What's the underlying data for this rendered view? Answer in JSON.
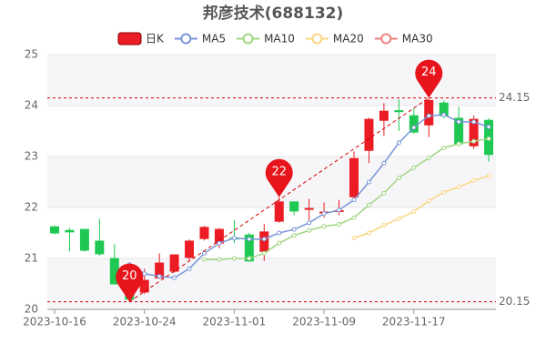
{
  "chart_data": {
    "type": "candlestick",
    "title": "邦彦技术(688132)",
    "categories": [
      "2023-10-16",
      null,
      null,
      null,
      null,
      null,
      "2023-10-24",
      null,
      null,
      null,
      null,
      null,
      "2023-11-01",
      null,
      null,
      null,
      null,
      null,
      "2023-11-09",
      null,
      null,
      null,
      null,
      null,
      "2023-11-17",
      null,
      null,
      null,
      null,
      null
    ],
    "series": [
      {
        "name": "日K",
        "type": "candlestick",
        "up_color": "#eb1c24",
        "down_color": "#1ec853",
        "open": [
          21.62,
          21.55,
          21.57,
          21.34,
          21.0,
          20.5,
          20.34,
          20.62,
          20.75,
          21.02,
          21.39,
          21.3,
          21.4,
          21.46,
          21.14,
          21.73,
          22.11,
          21.97,
          21.9,
          21.92,
          22.21,
          23.12,
          23.71,
          23.9,
          23.8,
          23.62,
          24.05,
          23.75,
          23.21,
          23.71
        ],
        "close": [
          21.5,
          21.52,
          21.16,
          21.09,
          20.5,
          20.2,
          20.57,
          20.91,
          21.07,
          21.34,
          21.61,
          21.57,
          21.38,
          20.95,
          21.52,
          22.11,
          21.93,
          21.98,
          21.91,
          21.94,
          22.96,
          23.73,
          23.89,
          23.88,
          23.48,
          24.1,
          23.8,
          23.25,
          23.73,
          23.04
        ],
        "high": [
          21.65,
          21.6,
          21.57,
          21.78,
          21.28,
          20.6,
          20.8,
          21.1,
          21.08,
          21.37,
          21.64,
          21.6,
          21.75,
          21.5,
          21.68,
          22.2,
          22.1,
          22.17,
          22.1,
          22.15,
          23.1,
          23.76,
          24.05,
          24.12,
          23.95,
          24.15,
          24.1,
          23.97,
          23.8,
          23.75
        ],
        "low": [
          21.47,
          21.14,
          21.13,
          21.05,
          20.5,
          20.15,
          20.3,
          20.6,
          20.72,
          20.95,
          21.35,
          21.2,
          21.3,
          20.93,
          20.95,
          21.7,
          21.85,
          21.75,
          21.8,
          21.85,
          22.15,
          22.87,
          23.4,
          23.5,
          23.45,
          23.38,
          23.75,
          23.2,
          23.15,
          22.9
        ]
      },
      {
        "name": "MA5",
        "type": "line",
        "color": "#7b95d8",
        "values": [
          null,
          null,
          null,
          null,
          null,
          20.88,
          20.7,
          20.65,
          20.62,
          20.8,
          21.1,
          21.3,
          21.4,
          21.38,
          21.38,
          21.5,
          21.57,
          21.7,
          21.88,
          21.95,
          22.15,
          22.5,
          22.87,
          23.27,
          23.57,
          23.8,
          23.82,
          23.68,
          23.68,
          23.58
        ]
      },
      {
        "name": "MA10",
        "type": "line",
        "color": "#9fd480",
        "values": [
          null,
          null,
          null,
          null,
          null,
          null,
          null,
          null,
          null,
          null,
          20.98,
          20.98,
          21.0,
          21.0,
          21.1,
          21.3,
          21.45,
          21.55,
          21.63,
          21.67,
          21.8,
          22.05,
          22.28,
          22.58,
          22.78,
          22.97,
          23.17,
          23.25,
          23.3,
          23.35
        ]
      },
      {
        "name": "MA20",
        "type": "line",
        "color": "#f8d57e",
        "values": [
          null,
          null,
          null,
          null,
          null,
          null,
          null,
          null,
          null,
          null,
          null,
          null,
          null,
          null,
          null,
          null,
          null,
          null,
          null,
          null,
          21.4,
          21.5,
          21.65,
          21.78,
          21.92,
          22.13,
          22.3,
          22.4,
          22.53,
          22.62
        ]
      },
      {
        "name": "MA30",
        "type": "line",
        "color": "#f08080",
        "values": [
          null,
          null,
          null,
          null,
          null,
          null,
          null,
          null,
          null,
          null,
          null,
          null,
          null,
          null,
          null,
          null,
          null,
          null,
          null,
          null,
          null,
          null,
          null,
          null,
          null,
          null,
          null,
          null,
          null,
          null
        ]
      }
    ],
    "ylim": [
      20,
      25
    ],
    "yticks": [
      20,
      21,
      22,
      23,
      24,
      25
    ],
    "marklines": [
      24.15,
      20.15
    ],
    "markpoints": [
      {
        "value": 20.15,
        "label": "20"
      },
      {
        "value": 22.2,
        "label": "22"
      },
      {
        "value": 24.15,
        "label": "24"
      }
    ],
    "markpoint_color": "#e8141b",
    "grid_bands": true
  }
}
